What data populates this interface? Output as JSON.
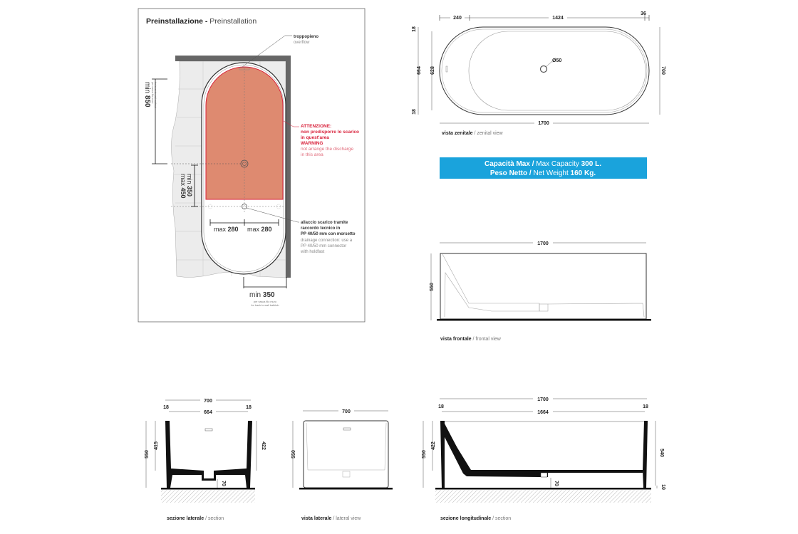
{
  "preinstallation": {
    "title_it": "Preinstallazione - ",
    "title_en": "Preinstallation",
    "overflow_it": "troppopieno",
    "overflow_en": "overflow",
    "warning_it_title": "ATTENZIONE:",
    "warning_it_1": "non predisporre lo scarico",
    "warning_it_2": "in quest'area",
    "warning_en_title": "WARNING",
    "warning_en_1": "not arrange the discharge",
    "warning_en_2": "in this area",
    "drain_it_1": "allaccio scarico tramite",
    "drain_it_2": "raccordo tecnico in",
    "drain_it_3": "PP 40/50 mm con morsetto",
    "drain_en_1": "drainage connection: use a",
    "drain_en_2": "PP 40/50 mm connector",
    "drain_en_3": "with holdfast",
    "min850_prefix": "min ",
    "min850_value": "850",
    "min850_note_it": "per vasca filo muro",
    "min850_note_en": "for back to wall bathtub",
    "min350_prefix": "min ",
    "min350_value": "350",
    "max450_prefix": "max ",
    "max450_value": "450",
    "max280_prefix": "max ",
    "max280_value": "280",
    "bottom_min_prefix": "min ",
    "bottom_min_value": "350",
    "bottom_note_it": "per vasca filo muro",
    "bottom_note_en": "for back to wall bathtub",
    "accent_color": "#d8203a",
    "area_color": "#de8a70"
  },
  "zenital": {
    "dims": {
      "left": "240",
      "middle": "1424",
      "right": "36",
      "length": "1700",
      "height": "700",
      "inner": "664",
      "inner2": "628",
      "edge": "18",
      "drain": "Ø50"
    },
    "caption_it": "vista zenitale",
    "caption_en": " / zenital view"
  },
  "specs": {
    "capacity_it": "Capacità Max / ",
    "capacity_en": "Max Capacity ",
    "capacity_value": "300 L.",
    "weight_it": "Peso Netto / ",
    "weight_en": "Net Weight ",
    "weight_value": "160 Kg.",
    "box_color": "#1aa3dc"
  },
  "frontal": {
    "dims": {
      "length": "1700",
      "height": "550"
    },
    "caption_it": "vista frontale",
    "caption_en": " / frontal view"
  },
  "lateral_section": {
    "dims": {
      "width": "700",
      "edge_l": "18",
      "edge_r": "18",
      "inner": "664",
      "height": "550",
      "depth_l": "415",
      "depth_r": "422",
      "drain": "70"
    },
    "caption_it": "sezione laterale",
    "caption_en": " / section"
  },
  "lateral_view": {
    "dims": {
      "width": "700",
      "height": "550"
    },
    "caption_it": "vista laterale",
    "caption_en": " / lateral view"
  },
  "longitudinal_section": {
    "dims": {
      "length": "1700",
      "edge_l": "18",
      "edge_r": "18",
      "inner": "1664",
      "height": "550",
      "depth": "422",
      "right_h": "540",
      "base": "10",
      "drain": "70"
    },
    "caption_it": "sezione longitudinale",
    "caption_en": " / section"
  }
}
